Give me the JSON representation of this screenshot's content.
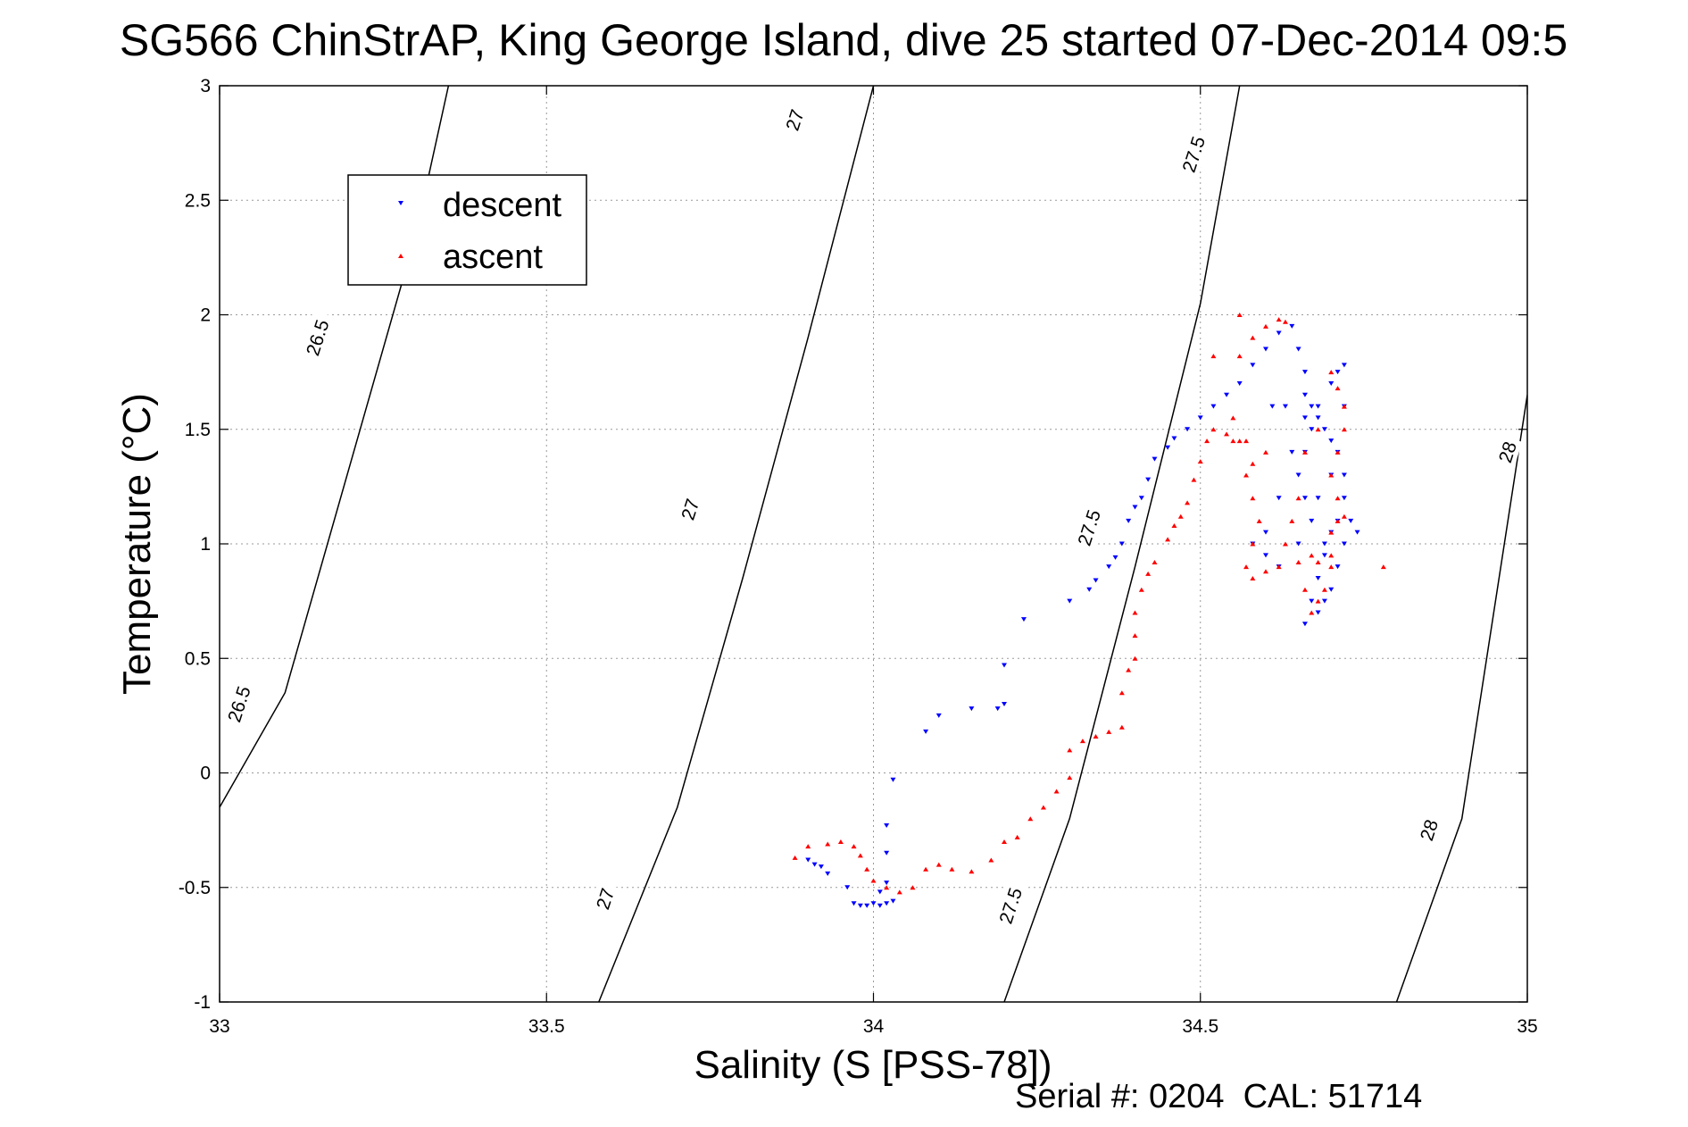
{
  "chart_data": {
    "type": "scatter",
    "title": "SG566 ChinStrAP, King George Island, dive 25 started 07-Dec-2014 09:5",
    "xlabel": "Salinity (S [PSS-78])",
    "ylabel": "Temperature (°C)",
    "xlim": [
      33,
      35
    ],
    "ylim": [
      -1,
      3
    ],
    "xticks": [
      "33",
      "33.5",
      "34",
      "34.5",
      "35"
    ],
    "yticks": [
      "-1",
      "-0.5",
      "0",
      "0.5",
      "1",
      "1.5",
      "2",
      "2.5",
      "3"
    ],
    "grid": true,
    "legend_position": "top-left",
    "footer": "Serial #: 0204  CAL: 51714",
    "colors": {
      "descent": "#0000ff",
      "ascent": "#ff0000",
      "contour": "#000000"
    },
    "density_contours": [
      {
        "label": "26.5",
        "points": [
          [
            33.0,
            -0.15
          ],
          [
            33.1,
            0.35
          ],
          [
            33.2,
            1.35
          ],
          [
            33.3,
            2.35
          ],
          [
            33.35,
            3.0
          ]
        ]
      },
      {
        "label": "27",
        "points": [
          [
            33.58,
            -1.0
          ],
          [
            33.7,
            -0.15
          ],
          [
            33.8,
            0.85
          ],
          [
            33.9,
            1.9
          ],
          [
            34.0,
            3.0
          ]
        ]
      },
      {
        "label": "27.5",
        "points": [
          [
            34.2,
            -1.0
          ],
          [
            34.3,
            -0.2
          ],
          [
            34.4,
            0.9
          ],
          [
            34.5,
            2.05
          ],
          [
            34.56,
            3.0
          ]
        ]
      },
      {
        "label": "28",
        "points": [
          [
            34.8,
            -1.0
          ],
          [
            34.9,
            -0.2
          ],
          [
            35.0,
            1.65
          ]
        ]
      }
    ],
    "contour_labels": [
      {
        "text": "26.5",
        "x": 33.15,
        "y": 1.9
      },
      {
        "text": "26.5",
        "x": 33.03,
        "y": 0.3
      },
      {
        "text": "27",
        "x": 33.88,
        "y": 2.85
      },
      {
        "text": "27",
        "x": 33.72,
        "y": 1.15
      },
      {
        "text": "27",
        "x": 33.59,
        "y": -0.55
      },
      {
        "text": "27.5",
        "x": 34.49,
        "y": 2.7
      },
      {
        "text": "27.5",
        "x": 34.33,
        "y": 1.07
      },
      {
        "text": "27.5",
        "x": 34.21,
        "y": -0.58
      },
      {
        "text": "28",
        "x": 34.97,
        "y": 1.4
      },
      {
        "text": "28",
        "x": 34.85,
        "y": -0.25
      }
    ],
    "series": [
      {
        "name": "descent",
        "marker": "triangle-down",
        "points": [
          [
            33.9,
            -0.38
          ],
          [
            33.91,
            -0.4
          ],
          [
            33.92,
            -0.41
          ],
          [
            33.93,
            -0.44
          ],
          [
            33.96,
            -0.5
          ],
          [
            33.97,
            -0.57
          ],
          [
            33.98,
            -0.58
          ],
          [
            33.99,
            -0.58
          ],
          [
            34.0,
            -0.57
          ],
          [
            34.01,
            -0.58
          ],
          [
            34.02,
            -0.57
          ],
          [
            34.03,
            -0.56
          ],
          [
            34.01,
            -0.52
          ],
          [
            34.02,
            -0.48
          ],
          [
            34.02,
            -0.35
          ],
          [
            34.02,
            -0.23
          ],
          [
            34.03,
            -0.03
          ],
          [
            34.08,
            0.18
          ],
          [
            34.1,
            0.25
          ],
          [
            34.15,
            0.28
          ],
          [
            34.19,
            0.28
          ],
          [
            34.2,
            0.3
          ],
          [
            34.2,
            0.47
          ],
          [
            34.23,
            0.67
          ],
          [
            34.3,
            0.75
          ],
          [
            34.33,
            0.8
          ],
          [
            34.34,
            0.84
          ],
          [
            34.36,
            0.9
          ],
          [
            34.37,
            0.94
          ],
          [
            34.38,
            1.0
          ],
          [
            34.39,
            1.1
          ],
          [
            34.4,
            1.16
          ],
          [
            34.41,
            1.2
          ],
          [
            34.42,
            1.28
          ],
          [
            34.43,
            1.37
          ],
          [
            34.45,
            1.42
          ],
          [
            34.46,
            1.46
          ],
          [
            34.48,
            1.5
          ],
          [
            34.5,
            1.55
          ],
          [
            34.52,
            1.6
          ],
          [
            34.54,
            1.65
          ],
          [
            34.56,
            1.7
          ],
          [
            34.58,
            1.78
          ],
          [
            34.6,
            1.85
          ],
          [
            34.62,
            1.92
          ],
          [
            34.64,
            1.95
          ],
          [
            34.65,
            1.85
          ],
          [
            34.66,
            1.75
          ],
          [
            34.66,
            1.65
          ],
          [
            34.67,
            1.6
          ],
          [
            34.68,
            1.55
          ],
          [
            34.69,
            1.5
          ],
          [
            34.7,
            1.45
          ],
          [
            34.71,
            1.4
          ],
          [
            34.72,
            1.3
          ],
          [
            34.72,
            1.2
          ],
          [
            34.73,
            1.1
          ],
          [
            34.72,
            1.0
          ],
          [
            34.71,
            0.9
          ],
          [
            34.7,
            0.8
          ],
          [
            34.69,
            0.75
          ],
          [
            34.68,
            0.7
          ],
          [
            34.66,
            0.65
          ],
          [
            34.67,
            0.75
          ],
          [
            34.68,
            0.85
          ],
          [
            34.69,
            0.95
          ],
          [
            34.7,
            1.05
          ],
          [
            34.71,
            1.1
          ],
          [
            34.69,
            1.0
          ],
          [
            34.67,
            1.1
          ],
          [
            34.66,
            1.2
          ],
          [
            34.65,
            1.3
          ],
          [
            34.66,
            1.4
          ],
          [
            34.67,
            1.5
          ],
          [
            34.68,
            1.6
          ],
          [
            34.7,
            1.7
          ],
          [
            34.71,
            1.75
          ],
          [
            34.72,
            1.78
          ],
          [
            34.64,
            1.4
          ],
          [
            34.62,
            1.2
          ],
          [
            34.6,
            1.05
          ],
          [
            34.58,
            1.0
          ],
          [
            34.6,
            0.95
          ],
          [
            34.62,
            0.9
          ],
          [
            34.65,
            1.0
          ],
          [
            34.68,
            1.2
          ],
          [
            34.63,
            1.6
          ],
          [
            34.61,
            1.6
          ],
          [
            34.7,
            1.3
          ],
          [
            34.72,
            1.6
          ],
          [
            34.74,
            1.05
          ],
          [
            34.66,
            1.55
          ]
        ]
      },
      {
        "name": "ascent",
        "marker": "triangle-up",
        "points": [
          [
            33.88,
            -0.37
          ],
          [
            33.9,
            -0.32
          ],
          [
            33.93,
            -0.31
          ],
          [
            33.95,
            -0.3
          ],
          [
            33.97,
            -0.32
          ],
          [
            33.98,
            -0.36
          ],
          [
            33.99,
            -0.42
          ],
          [
            34.0,
            -0.47
          ],
          [
            34.02,
            -0.5
          ],
          [
            34.04,
            -0.52
          ],
          [
            34.06,
            -0.5
          ],
          [
            34.08,
            -0.42
          ],
          [
            34.1,
            -0.4
          ],
          [
            34.12,
            -0.42
          ],
          [
            34.15,
            -0.43
          ],
          [
            34.18,
            -0.38
          ],
          [
            34.2,
            -0.3
          ],
          [
            34.22,
            -0.28
          ],
          [
            34.24,
            -0.2
          ],
          [
            34.26,
            -0.15
          ],
          [
            34.28,
            -0.08
          ],
          [
            34.3,
            -0.02
          ],
          [
            34.3,
            0.1
          ],
          [
            34.32,
            0.14
          ],
          [
            34.34,
            0.16
          ],
          [
            34.36,
            0.18
          ],
          [
            34.38,
            0.2
          ],
          [
            34.38,
            0.35
          ],
          [
            34.39,
            0.45
          ],
          [
            34.4,
            0.5
          ],
          [
            34.4,
            0.6
          ],
          [
            34.4,
            0.7
          ],
          [
            34.41,
            0.8
          ],
          [
            34.42,
            0.87
          ],
          [
            34.43,
            0.92
          ],
          [
            34.45,
            1.02
          ],
          [
            34.46,
            1.08
          ],
          [
            34.47,
            1.12
          ],
          [
            34.48,
            1.18
          ],
          [
            34.49,
            1.28
          ],
          [
            34.5,
            1.36
          ],
          [
            34.51,
            1.45
          ],
          [
            34.52,
            1.5
          ],
          [
            34.54,
            1.48
          ],
          [
            34.55,
            1.45
          ],
          [
            34.56,
            1.45
          ],
          [
            34.57,
            1.3
          ],
          [
            34.58,
            1.35
          ],
          [
            34.58,
            1.2
          ],
          [
            34.59,
            1.1
          ],
          [
            34.58,
            1.0
          ],
          [
            34.57,
            0.9
          ],
          [
            34.58,
            0.85
          ],
          [
            34.6,
            0.88
          ],
          [
            34.62,
            0.9
          ],
          [
            34.65,
            0.92
          ],
          [
            34.67,
            0.95
          ],
          [
            34.68,
            0.92
          ],
          [
            34.7,
            0.95
          ],
          [
            34.7,
            1.05
          ],
          [
            34.71,
            1.1
          ],
          [
            34.72,
            1.12
          ],
          [
            34.71,
            1.2
          ],
          [
            34.7,
            1.3
          ],
          [
            34.71,
            1.4
          ],
          [
            34.72,
            1.5
          ],
          [
            34.72,
            1.6
          ],
          [
            34.71,
            1.68
          ],
          [
            34.7,
            1.75
          ],
          [
            34.68,
            1.5
          ],
          [
            34.66,
            1.4
          ],
          [
            34.65,
            1.2
          ],
          [
            34.64,
            1.1
          ],
          [
            34.63,
            1.0
          ],
          [
            34.66,
            0.8
          ],
          [
            34.67,
            0.7
          ],
          [
            34.68,
            0.75
          ],
          [
            34.69,
            0.8
          ],
          [
            34.7,
            0.9
          ],
          [
            34.56,
            1.82
          ],
          [
            34.58,
            1.9
          ],
          [
            34.6,
            1.95
          ],
          [
            34.62,
            1.98
          ],
          [
            34.63,
            1.97
          ],
          [
            34.56,
            2.0
          ],
          [
            34.52,
            1.82
          ],
          [
            34.78,
            0.9
          ],
          [
            34.6,
            1.4
          ],
          [
            34.55,
            1.55
          ],
          [
            34.57,
            1.45
          ]
        ]
      }
    ]
  }
}
